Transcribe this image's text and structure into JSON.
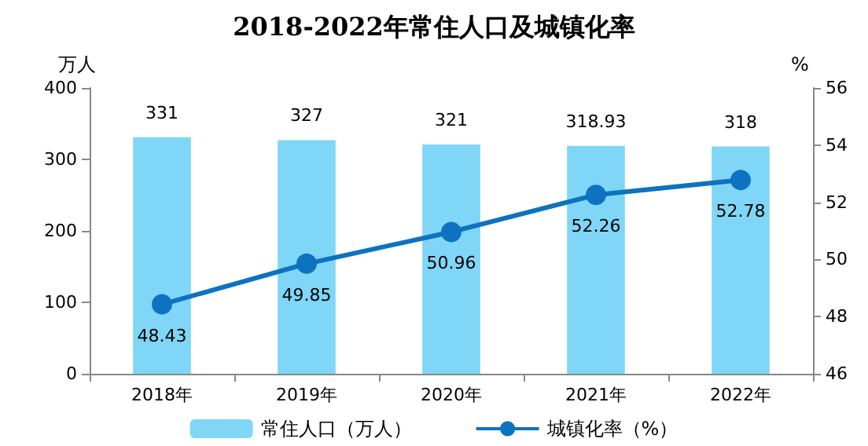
{
  "chart_data": {
    "type": "bar",
    "title": "2018-2022年常住人口及城镇化率",
    "ylabel": "万人",
    "y2label": "%",
    "categories": [
      "2018年",
      "2019年",
      "2020年",
      "2021年",
      "2022年"
    ],
    "series": [
      {
        "name": "常住人口（万人）",
        "color": "#7fd6f6",
        "values": [
          331,
          327,
          321,
          318.93,
          318
        ]
      },
      {
        "name": "城镇化率（%）",
        "type": "line",
        "axis": "y2",
        "color": "#0d72c0",
        "marker": "circle",
        "values": [
          48.43,
          49.85,
          50.96,
          52.26,
          52.78
        ]
      }
    ],
    "ylim": [
      0,
      400
    ],
    "yticks": [
      0,
      100,
      200,
      300,
      400
    ],
    "y2lim": [
      46,
      56
    ],
    "y2ticks": [
      46,
      48,
      50,
      52,
      54,
      56
    ],
    "data_labels": true,
    "grid": false,
    "legend": "bottom"
  }
}
